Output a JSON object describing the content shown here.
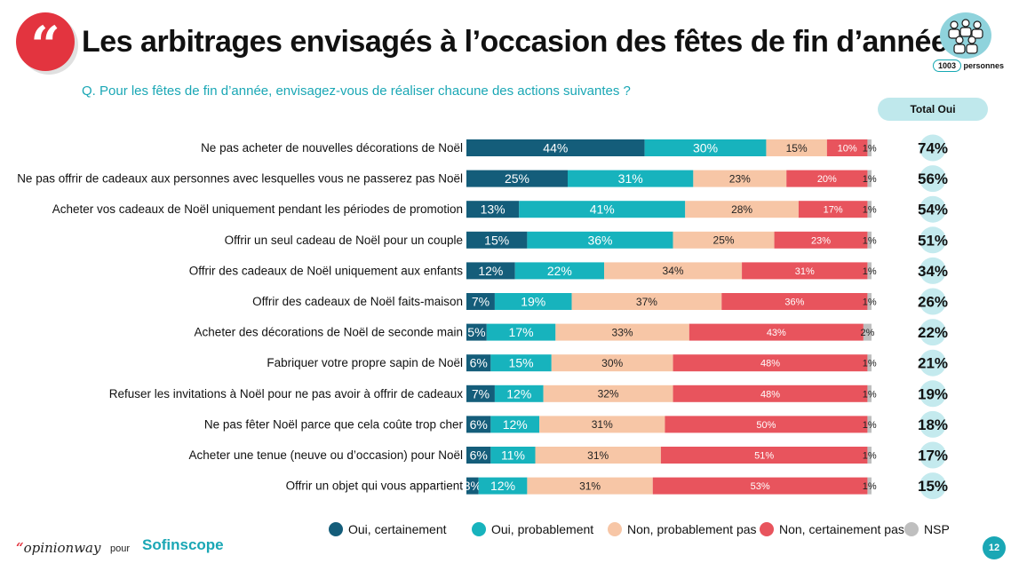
{
  "header": {
    "quote_glyph": "“",
    "title": "Les arbitrages envisagés à l’occasion des fêtes de fin d’année",
    "question": "Q. Pour les fêtes de fin d’année, envisagez-vous de réaliser chacune des actions suivantes ?",
    "sample_size": "1003",
    "sample_label": "personnes",
    "total_header": "Total Oui"
  },
  "footer": {
    "brand_mark": "“",
    "brand_name": "opinionway",
    "pour": "pour",
    "partner": "Sofinscope",
    "page_number": "12"
  },
  "colors": {
    "oui_certainement": "#145d7a",
    "oui_probablement": "#17b3bd",
    "non_probablement_pas": "#f7c6a6",
    "non_certainement_pas": "#e8545d",
    "nsp": "#bfbfbf",
    "accent_red": "#e3343f",
    "total_bubble": "#c4eaee"
  },
  "chart_data": {
    "type": "bar",
    "orientation": "horizontal",
    "stacked": true,
    "xlim": [
      0,
      100
    ],
    "legend_position": "bottom",
    "categories": [
      "Ne pas acheter de nouvelles décorations de Noël",
      "Ne pas offrir de cadeaux aux personnes avec lesquelles vous ne passerez pas Noël",
      "Acheter vos cadeaux de Noël uniquement pendant les périodes de promotion",
      "Offrir un seul cadeau de Noël pour un couple",
      "Offrir des cadeaux de Noël uniquement aux enfants",
      "Offrir des cadeaux de Noël faits-maison",
      "Acheter des décorations de Noël de seconde main",
      "Fabriquer votre propre sapin de Noël",
      "Refuser les invitations à Noël pour ne pas avoir à offrir de cadeaux",
      "Ne pas fêter Noël parce que cela coûte trop cher",
      "Acheter une tenue (neuve ou d’occasion) pour Noël",
      "Offrir un objet qui vous appartient"
    ],
    "series": [
      {
        "name": "Oui, certainement",
        "values": [
          44,
          25,
          13,
          15,
          12,
          7,
          5,
          6,
          7,
          6,
          6,
          3
        ]
      },
      {
        "name": "Oui, probablement",
        "values": [
          30,
          31,
          41,
          36,
          22,
          19,
          17,
          15,
          12,
          12,
          11,
          12
        ]
      },
      {
        "name": "Non, probablement pas",
        "values": [
          15,
          23,
          28,
          25,
          34,
          37,
          33,
          30,
          32,
          31,
          31,
          31
        ]
      },
      {
        "name": "Non, certainement pas",
        "values": [
          10,
          20,
          17,
          23,
          31,
          36,
          43,
          48,
          48,
          50,
          51,
          53
        ]
      },
      {
        "name": "NSP",
        "values": [
          1,
          1,
          1,
          1,
          1,
          1,
          2,
          1,
          1,
          1,
          1,
          1
        ]
      }
    ],
    "total_oui": [
      74,
      56,
      54,
      51,
      34,
      26,
      22,
      21,
      19,
      18,
      17,
      15
    ],
    "value_suffix": "%"
  }
}
